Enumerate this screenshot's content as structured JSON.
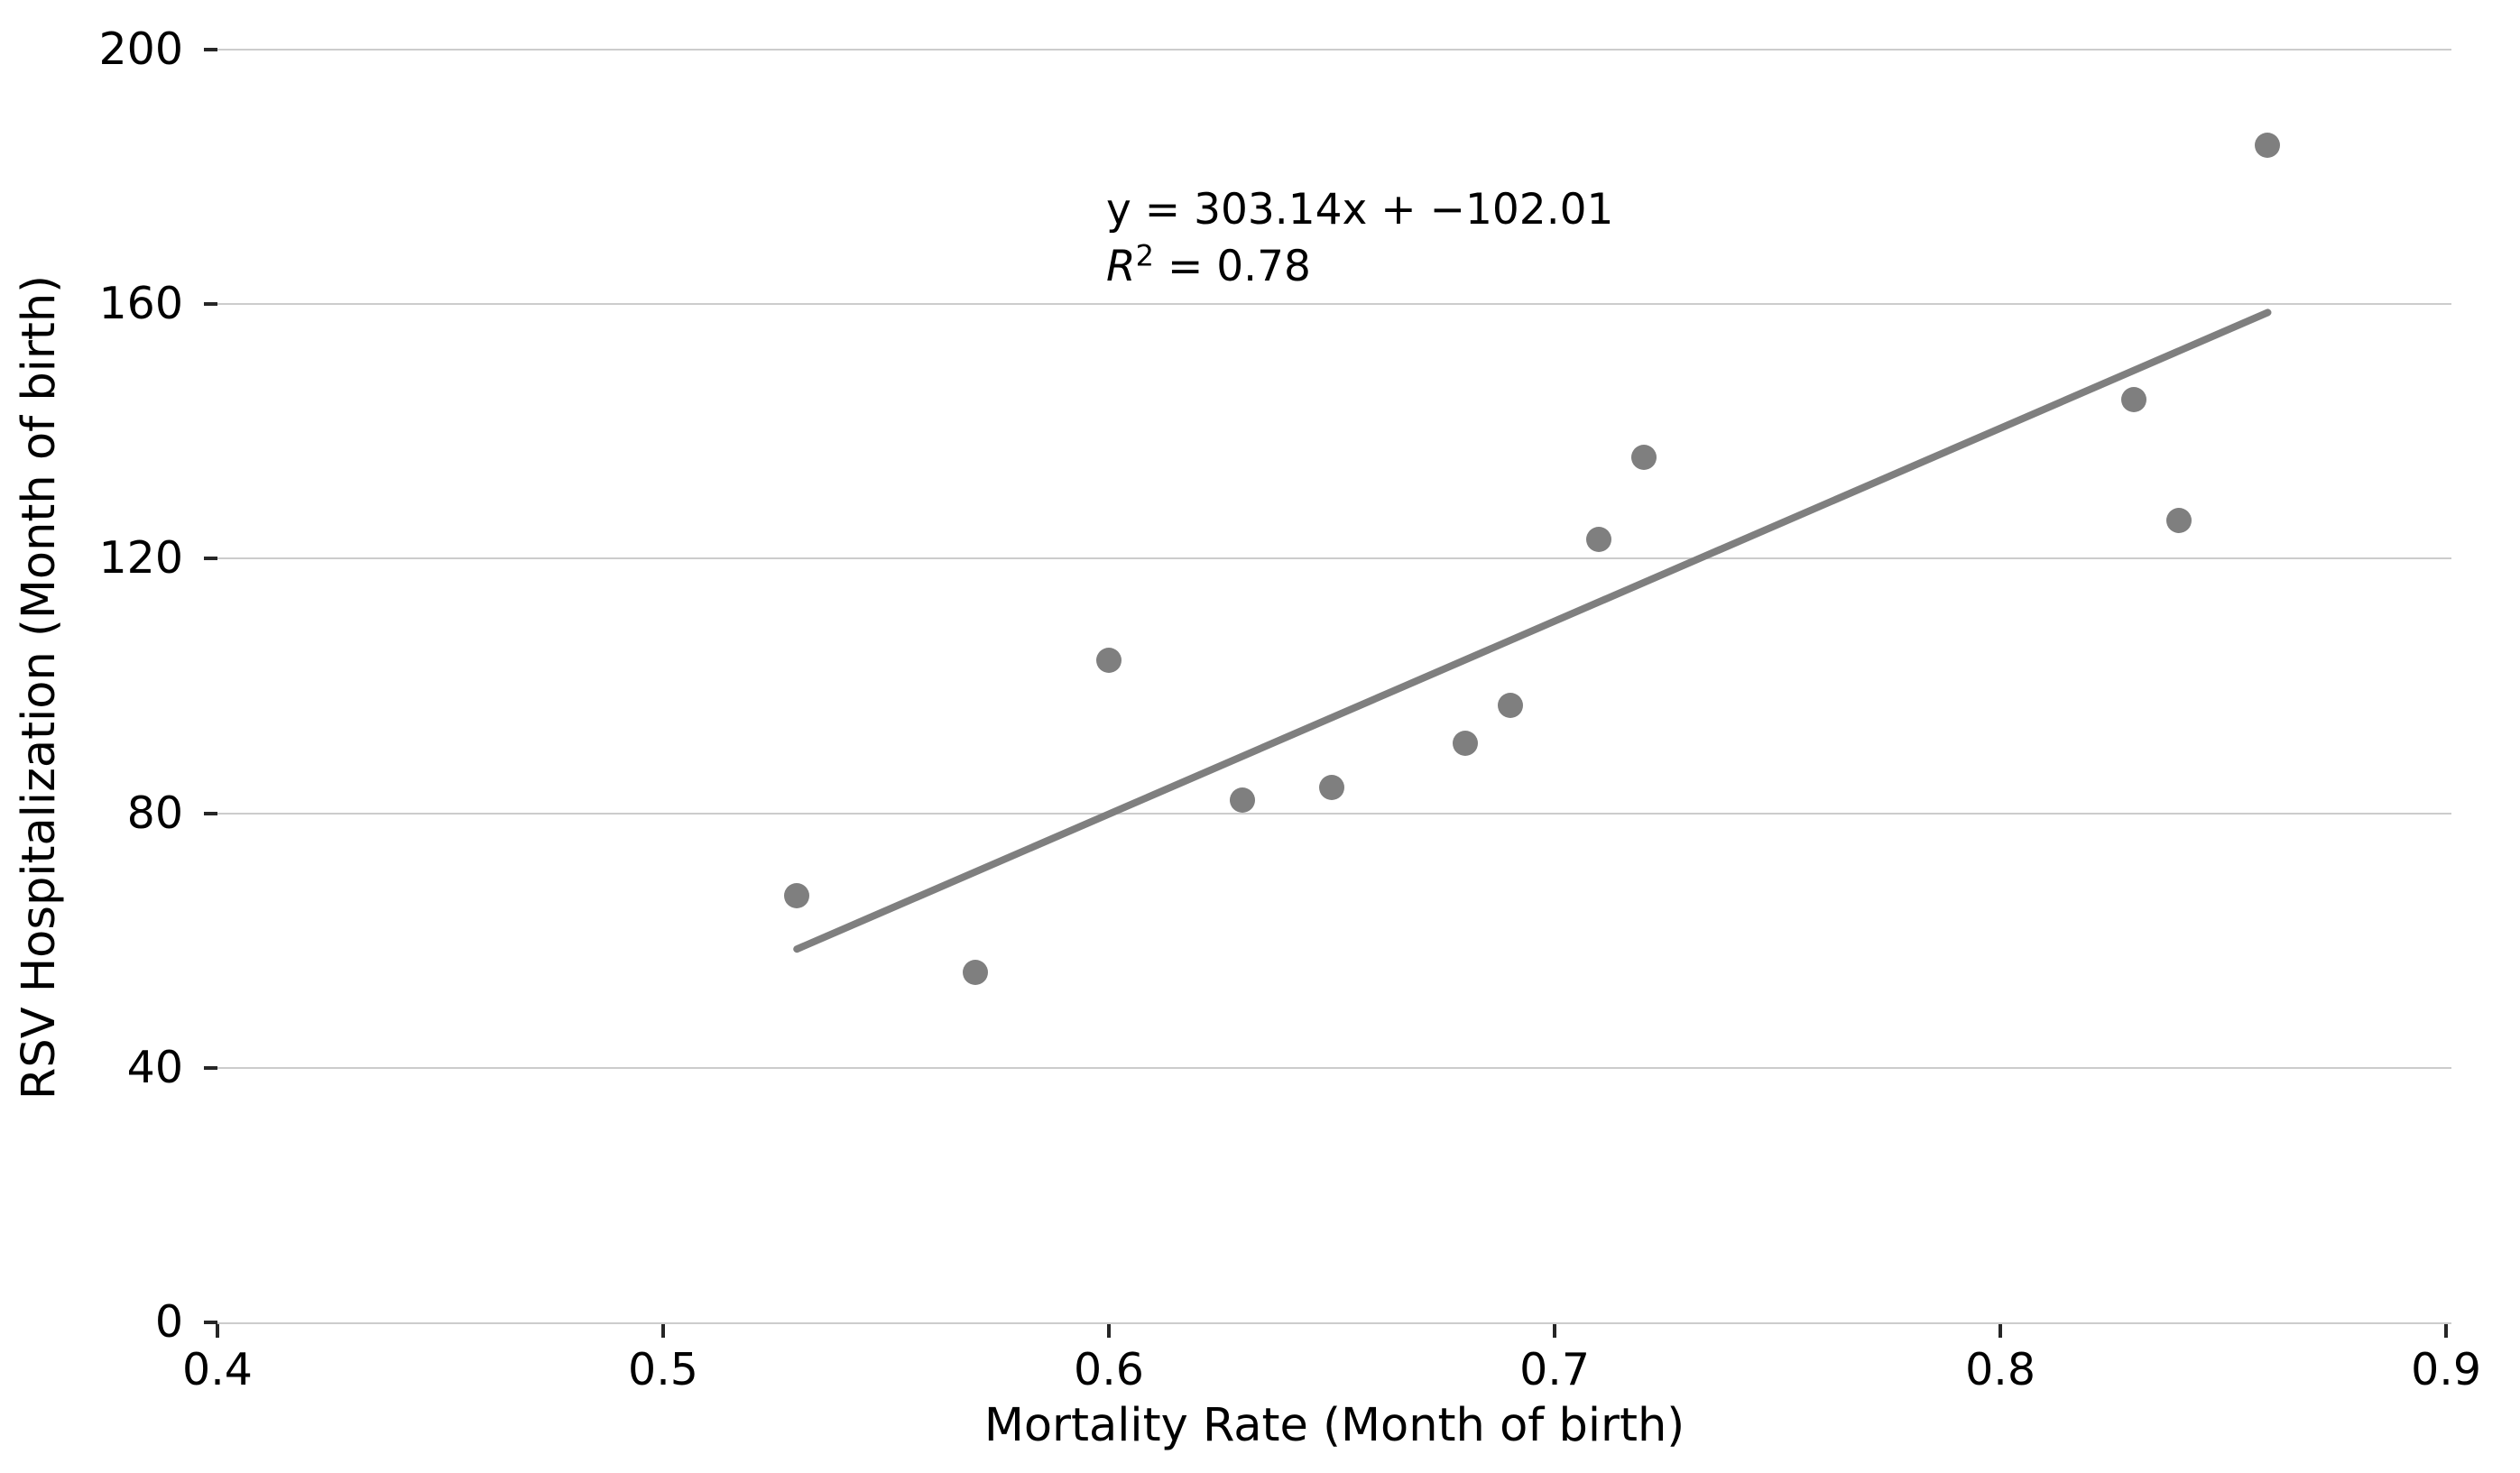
{
  "chart_data": {
    "type": "scatter",
    "title": "",
    "xlabel": "Mortality Rate (Month of birth)",
    "ylabel": "RSV Hospitalization (Month of birth)",
    "xlim": [
      0.4,
      0.9012
    ],
    "ylim": [
      0,
      200
    ],
    "x_ticks": [
      0.4,
      0.5,
      0.6,
      0.7,
      0.8,
      0.9
    ],
    "x_tick_labels": [
      "0.4",
      "0.5",
      "0.6",
      "0.7",
      "0.8",
      "0.9"
    ],
    "y_ticks": [
      0,
      40,
      80,
      120,
      160,
      200
    ],
    "y_tick_labels": [
      "0",
      "40",
      "80",
      "120",
      "160",
      "200"
    ],
    "grid": "horizontal-only",
    "legend": "none",
    "points": [
      [
        0.53,
        67
      ],
      [
        0.57,
        55
      ],
      [
        0.6,
        104
      ],
      [
        0.63,
        82
      ],
      [
        0.65,
        84
      ],
      [
        0.68,
        91
      ],
      [
        0.69,
        97
      ],
      [
        0.71,
        123
      ],
      [
        0.72,
        136
      ],
      [
        0.83,
        145
      ],
      [
        0.84,
        126
      ],
      [
        0.86,
        185
      ]
    ],
    "trendline": {
      "slope": 303.14,
      "intercept": -102.01,
      "x_start": 0.53,
      "x_end": 0.86
    },
    "annotation": {
      "line1": "y = 303.14x + −102.01",
      "r_symbol": "R",
      "r_superscript": "2",
      "r_rest": " = 0.78"
    },
    "colors": {
      "point": "#7f7f7f",
      "trendline": "#7f7f7f",
      "gridline": "#cccccc",
      "axis_spine": "#cccccc",
      "tick_mark": "#262626",
      "text": "#000000",
      "background": "#ffffff"
    }
  }
}
